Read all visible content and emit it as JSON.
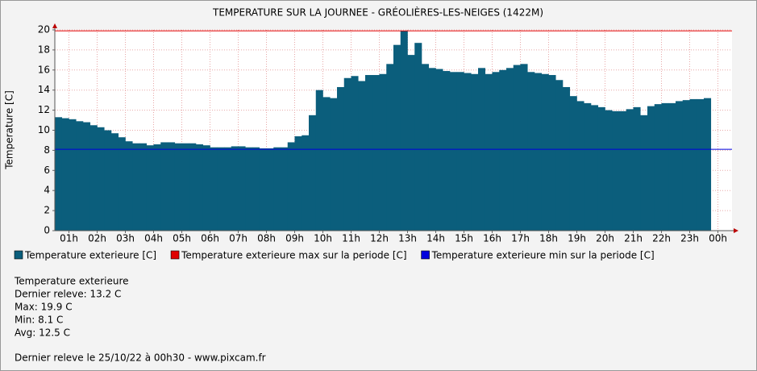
{
  "chart_data": {
    "type": "bar",
    "title": "TEMPERATURE SUR LA JOURNEE - GRÉOLIÈRES-LES-NEIGES (1422M)",
    "ylabel": "Temperature [C]",
    "xlim": [
      0.5,
      24.5
    ],
    "xticks": [
      {
        "value": 1,
        "label": "01h"
      },
      {
        "value": 2,
        "label": "02h"
      },
      {
        "value": 3,
        "label": "03h"
      },
      {
        "value": 4,
        "label": "04h"
      },
      {
        "value": 5,
        "label": "05h"
      },
      {
        "value": 6,
        "label": "06h"
      },
      {
        "value": 7,
        "label": "07h"
      },
      {
        "value": 8,
        "label": "08h"
      },
      {
        "value": 9,
        "label": "09h"
      },
      {
        "value": 10,
        "label": "10h"
      },
      {
        "value": 11,
        "label": "11h"
      },
      {
        "value": 12,
        "label": "12h"
      },
      {
        "value": 13,
        "label": "13h"
      },
      {
        "value": 14,
        "label": "14h"
      },
      {
        "value": 15,
        "label": "15h"
      },
      {
        "value": 16,
        "label": "16h"
      },
      {
        "value": 17,
        "label": "17h"
      },
      {
        "value": 18,
        "label": "18h"
      },
      {
        "value": 19,
        "label": "19h"
      },
      {
        "value": 20,
        "label": "20h"
      },
      {
        "value": 21,
        "label": "21h"
      },
      {
        "value": 22,
        "label": "22h"
      },
      {
        "value": 23,
        "label": "23h"
      },
      {
        "value": 24,
        "label": "00h"
      }
    ],
    "ylim": [
      0,
      20
    ],
    "yticks": [
      0,
      2,
      4,
      6,
      8,
      10,
      12,
      14,
      16,
      18,
      20
    ],
    "grid": true,
    "step": 0.25,
    "x": [
      0.5,
      0.75,
      1.0,
      1.25,
      1.5,
      1.75,
      2.0,
      2.25,
      2.5,
      2.75,
      3.0,
      3.25,
      3.5,
      3.75,
      4.0,
      4.25,
      4.5,
      4.75,
      5.0,
      5.25,
      5.5,
      5.75,
      6.0,
      6.25,
      6.5,
      6.75,
      7.0,
      7.25,
      7.5,
      7.75,
      8.0,
      8.25,
      8.5,
      8.75,
      9.0,
      9.25,
      9.5,
      9.75,
      10.0,
      10.25,
      10.5,
      10.75,
      11.0,
      11.25,
      11.5,
      11.75,
      12.0,
      12.25,
      12.5,
      12.75,
      13.0,
      13.25,
      13.5,
      13.75,
      14.0,
      14.25,
      14.5,
      14.75,
      15.0,
      15.25,
      15.5,
      15.75,
      16.0,
      16.25,
      16.5,
      16.75,
      17.0,
      17.25,
      17.5,
      17.75,
      18.0,
      18.25,
      18.5,
      18.75,
      19.0,
      19.25,
      19.5,
      19.75,
      20.0,
      20.25,
      20.5,
      20.75,
      21.0,
      21.25,
      21.5,
      21.75,
      22.0,
      22.25,
      22.5,
      22.75,
      23.0,
      23.25,
      23.5
    ],
    "series": [
      {
        "name": "Temperature exterieure [C]",
        "color": "#0b5e7c",
        "values": [
          11.3,
          11.2,
          11.1,
          10.9,
          10.8,
          10.5,
          10.3,
          10.0,
          9.7,
          9.3,
          8.9,
          8.7,
          8.7,
          8.5,
          8.6,
          8.8,
          8.8,
          8.7,
          8.7,
          8.7,
          8.6,
          8.5,
          8.3,
          8.3,
          8.3,
          8.4,
          8.4,
          8.3,
          8.3,
          8.2,
          8.2,
          8.3,
          8.3,
          8.8,
          9.4,
          9.5,
          11.5,
          14.0,
          13.3,
          13.2,
          14.3,
          15.2,
          15.4,
          14.9,
          15.5,
          15.5,
          15.6,
          16.6,
          18.5,
          19.9,
          17.5,
          18.7,
          16.6,
          16.2,
          16.1,
          15.9,
          15.8,
          15.8,
          15.7,
          15.6,
          16.2,
          15.6,
          15.8,
          16.0,
          16.2,
          16.5,
          16.6,
          15.8,
          15.7,
          15.6,
          15.5,
          15.0,
          14.3,
          13.4,
          12.9,
          12.7,
          12.5,
          12.3,
          12.0,
          11.9,
          11.9,
          12.1,
          12.3,
          11.5,
          12.4,
          12.6,
          12.7,
          12.7,
          12.9,
          13.0,
          13.1,
          13.1,
          13.2
        ]
      },
      {
        "name": "Temperature exterieure max sur la periode [C]",
        "color": "#e00000",
        "value": 19.9
      },
      {
        "name": "Temperature exterieure min sur la periode [C]",
        "color": "#0000dd",
        "value": 8.1
      }
    ]
  },
  "info": {
    "lines": [
      "Temperature exterieure",
      "Dernier releve: 13.2 C",
      "Max: 19.9 C",
      "Min: 8.1 C",
      "Avg: 12.5 C"
    ],
    "footer": "Dernier releve le 25/10/22 à 00h30 - www.pixcam.fr"
  }
}
